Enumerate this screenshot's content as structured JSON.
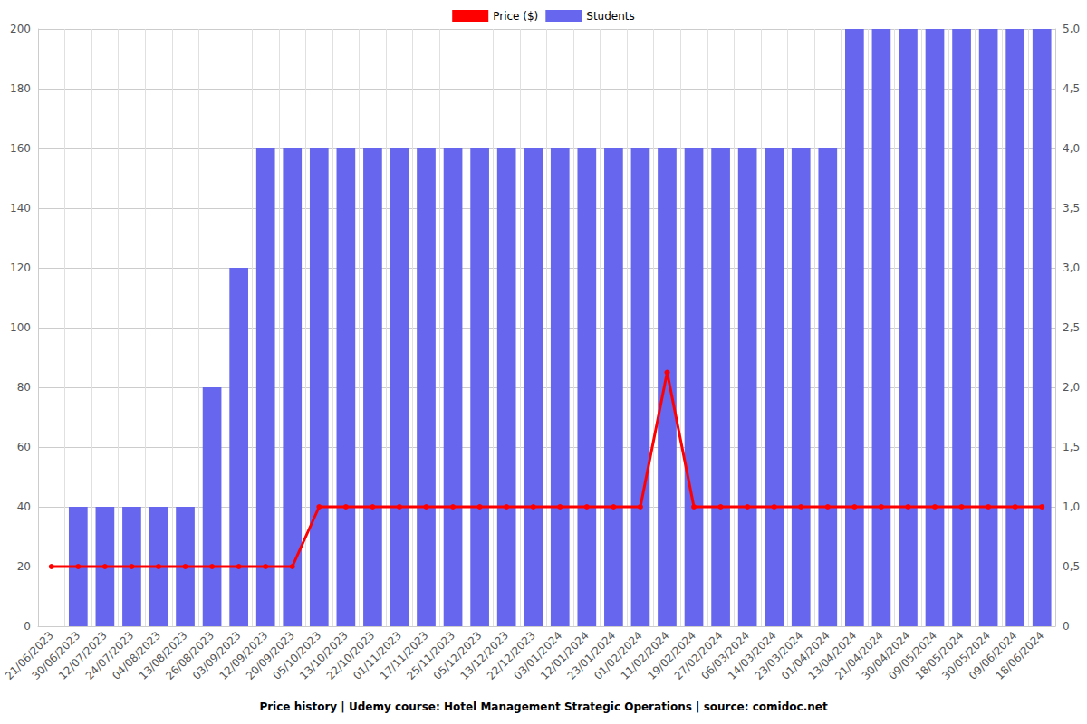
{
  "chart_data": {
    "type": "bar",
    "title": "Price history | Udemy course: Hotel Management Strategic Operations | source: comidoc.net",
    "categories": [
      "21/06/2023",
      "30/06/2023",
      "12/07/2023",
      "24/07/2023",
      "04/08/2023",
      "13/08/2023",
      "26/08/2023",
      "03/09/2023",
      "12/09/2023",
      "20/09/2023",
      "05/10/2023",
      "13/10/2023",
      "22/10/2023",
      "01/11/2023",
      "17/11/2023",
      "25/11/2023",
      "05/12/2023",
      "13/12/2023",
      "22/12/2023",
      "03/01/2024",
      "12/01/2024",
      "23/01/2024",
      "01/02/2024",
      "11/02/2024",
      "19/02/2024",
      "27/02/2024",
      "06/03/2024",
      "14/03/2024",
      "23/03/2024",
      "01/04/2024",
      "13/04/2024",
      "21/04/2024",
      "30/04/2024",
      "09/05/2024",
      "18/05/2024",
      "30/05/2024",
      "09/06/2024",
      "18/06/2024"
    ],
    "series": [
      {
        "name": "Price ($)",
        "type": "line",
        "color": "#ff0000",
        "marker": "circle",
        "values": [
          20,
          20,
          20,
          20,
          20,
          20,
          20,
          20,
          20,
          20,
          40,
          40,
          40,
          40,
          40,
          40,
          40,
          40,
          40,
          40,
          40,
          40,
          40,
          85,
          40,
          40,
          40,
          40,
          40,
          40,
          40,
          40,
          40,
          40,
          40,
          40,
          40,
          40
        ]
      },
      {
        "name": "Students",
        "type": "bar",
        "color": "#6666ee",
        "axis": "y2",
        "values": [
          null,
          1,
          1,
          1,
          1,
          1,
          2,
          3,
          4,
          4,
          4,
          4,
          4,
          4,
          4,
          4,
          4,
          4,
          4,
          4,
          4,
          4,
          4,
          4,
          4,
          4,
          4,
          4,
          4,
          4,
          5,
          5,
          5,
          5,
          5,
          5,
          5,
          5
        ]
      }
    ],
    "ylim": [
      0,
      200
    ],
    "yticks": [
      0,
      20,
      40,
      60,
      80,
      100,
      120,
      140,
      160,
      180,
      200
    ],
    "y2lim": [
      0,
      5
    ],
    "y2ticks": [
      0,
      {
        "value": 0.5,
        "label": "0,5"
      },
      {
        "value": 1,
        "label": "1,0"
      },
      {
        "value": 1.5,
        "label": "1,5"
      },
      {
        "value": 2,
        "label": "2,0"
      },
      {
        "value": 2.5,
        "label": "2,5"
      },
      {
        "value": 3,
        "label": "3,0"
      },
      {
        "value": 3.5,
        "label": "3,5"
      },
      {
        "value": 4,
        "label": "4,0"
      },
      {
        "value": 4.5,
        "label": "4,5"
      },
      {
        "value": 5,
        "label": "5,0"
      }
    ],
    "grid": true,
    "legend": "top"
  }
}
